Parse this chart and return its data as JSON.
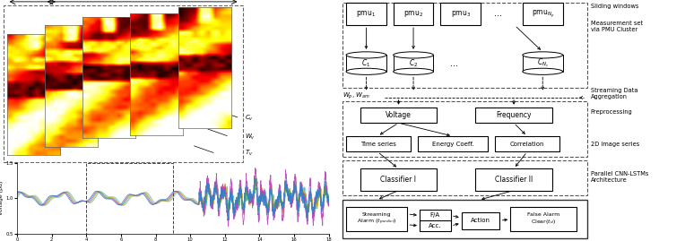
{
  "bg_color": "#ffffff",
  "fig_width": 7.64,
  "fig_height": 2.69,
  "dpi": 100,
  "right_panel": {
    "pmu_labels": [
      "pmu$_1$",
      "pmu$_2$",
      "pmu$_3$",
      "...",
      "pmu$_{N_p}$"
    ],
    "cluster_labels": [
      "C$_1$",
      "C$_2$",
      "...",
      "C$_{N_c}$"
    ],
    "side_label_sliding": "Sliding windows",
    "side_label_measurement": "Measurement set\nvia PMU Cluster",
    "wp_wam_label": "$W_p$, $W_{am}$",
    "aggregation_label": "Streaming Data\nAggregation",
    "preprocessing_label": "Preprocessing",
    "row2_labels": [
      "Voltage",
      "Frequency"
    ],
    "row3_labels": [
      "Time series",
      "Energy Coeff.",
      "Correlation"
    ],
    "image_series_label": "2D image series",
    "classifier_labels": [
      "Classifier I",
      "Classifier II"
    ],
    "cnn_label": "Parallel CNN-LSTMs\nArchitecture",
    "bottom_labels": [
      "Streaming\nAlarm ($t_{predict}$)",
      "F/A",
      "Acc.",
      "Action",
      "False Alarm\nClear($t_d$)"
    ],
    "dashed_box_color": "#555555",
    "solid_box_color": "#000000"
  }
}
